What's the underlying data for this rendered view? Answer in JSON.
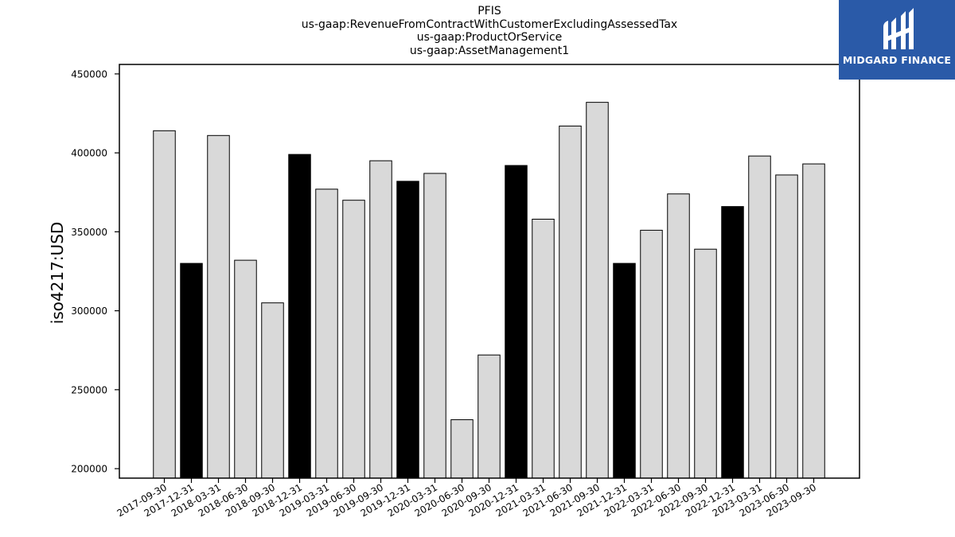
{
  "chart_data": {
    "type": "bar",
    "title_lines": [
      "PFIS",
      "us-gaap:RevenueFromContractWithCustomerExcludingAssessedTax",
      "us-gaap:ProductOrService",
      "us-gaap:AssetManagement1"
    ],
    "ylabel": "iso4217:USD",
    "xlabel": "",
    "ylim": [
      194000,
      456000
    ],
    "yticks": [
      200000,
      250000,
      300000,
      350000,
      400000,
      450000
    ],
    "ytick_labels": [
      "200000",
      "250000",
      "300000",
      "350000",
      "400000",
      "450000"
    ],
    "categories": [
      "2017-09-30",
      "2017-12-31",
      "2018-03-31",
      "2018-06-30",
      "2018-09-30",
      "2018-12-31",
      "2019-03-31",
      "2019-06-30",
      "2019-09-30",
      "2019-12-31",
      "2020-03-31",
      "2020-06-30",
      "2020-09-30",
      "2020-12-31",
      "2021-03-31",
      "2021-06-30",
      "2021-09-30",
      "2021-12-31",
      "2022-03-31",
      "2022-06-30",
      "2022-09-30",
      "2022-12-31",
      "2023-03-31",
      "2023-06-30",
      "2023-09-30"
    ],
    "values": [
      414000,
      330000,
      411000,
      332000,
      305000,
      399000,
      377000,
      370000,
      395000,
      382000,
      387000,
      231000,
      272000,
      392000,
      358000,
      417000,
      432000,
      330000,
      351000,
      374000,
      339000,
      366000,
      398000,
      386000,
      393000
    ],
    "bar_colors": [
      "#d9d9d9",
      "#000000",
      "#d9d9d9",
      "#d9d9d9",
      "#d9d9d9",
      "#000000",
      "#d9d9d9",
      "#d9d9d9",
      "#d9d9d9",
      "#000000",
      "#d9d9d9",
      "#d9d9d9",
      "#d9d9d9",
      "#000000",
      "#d9d9d9",
      "#d9d9d9",
      "#d9d9d9",
      "#000000",
      "#d9d9d9",
      "#d9d9d9",
      "#d9d9d9",
      "#000000",
      "#d9d9d9",
      "#d9d9d9",
      "#d9d9d9"
    ],
    "grid": false,
    "legend": "none"
  },
  "logo": {
    "text": "MIDGARD FINANCE",
    "background": "#2a5aa8",
    "icon": "midgard-logo-icon"
  }
}
